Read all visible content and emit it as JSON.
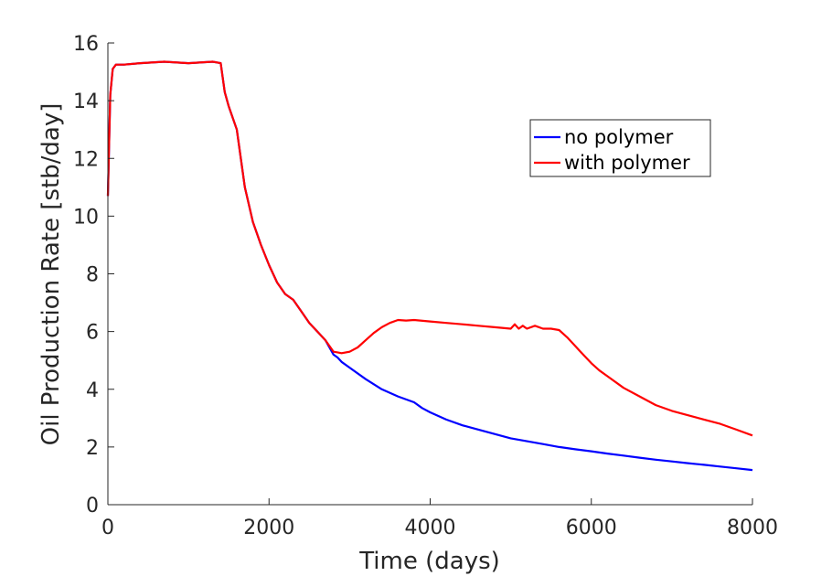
{
  "chart_data": {
    "type": "line",
    "title": "",
    "xlabel": "Time (days)",
    "ylabel": "Oil Production Rate [stb/day]",
    "xlim": [
      0,
      8000
    ],
    "ylim": [
      0,
      16
    ],
    "x_ticks": [
      0,
      2000,
      4000,
      6000,
      8000
    ],
    "y_ticks": [
      0,
      2,
      4,
      6,
      8,
      10,
      12,
      14,
      16
    ],
    "grid": false,
    "legend_position": "top-right",
    "series": [
      {
        "name": "no polymer",
        "color": "#0000ff",
        "x": [
          0,
          30,
          60,
          100,
          200,
          400,
          700,
          1000,
          1300,
          1400,
          1450,
          1500,
          1600,
          1700,
          1800,
          1900,
          2000,
          2100,
          2200,
          2300,
          2400,
          2500,
          2600,
          2700,
          2800,
          2850,
          2900,
          3000,
          3200,
          3400,
          3600,
          3800,
          3900,
          4000,
          4200,
          4400,
          4600,
          4800,
          5000,
          5200,
          5400,
          5600,
          5800,
          6000,
          6200,
          6400,
          6600,
          6800,
          7000,
          7200,
          7400,
          7600,
          7800,
          8000
        ],
        "y": [
          10.7,
          14.2,
          15.1,
          15.25,
          15.25,
          15.3,
          15.35,
          15.3,
          15.35,
          15.3,
          14.3,
          13.8,
          13.0,
          11.0,
          9.8,
          9.0,
          8.3,
          7.7,
          7.3,
          7.1,
          6.7,
          6.3,
          6.0,
          5.7,
          5.2,
          5.1,
          4.95,
          4.75,
          4.35,
          4.0,
          3.75,
          3.55,
          3.35,
          3.2,
          2.95,
          2.75,
          2.6,
          2.45,
          2.3,
          2.2,
          2.1,
          2.0,
          1.92,
          1.85,
          1.77,
          1.7,
          1.63,
          1.56,
          1.5,
          1.44,
          1.38,
          1.32,
          1.26,
          1.2
        ]
      },
      {
        "name": "with polymer",
        "color": "#ff0000",
        "x": [
          0,
          30,
          60,
          100,
          200,
          400,
          700,
          1000,
          1300,
          1400,
          1450,
          1500,
          1600,
          1700,
          1800,
          1900,
          2000,
          2100,
          2200,
          2300,
          2400,
          2500,
          2600,
          2700,
          2800,
          2850,
          2900,
          3000,
          3100,
          3200,
          3300,
          3400,
          3500,
          3600,
          3700,
          3800,
          4000,
          4200,
          4400,
          4600,
          4800,
          5000,
          5050,
          5100,
          5150,
          5200,
          5300,
          5400,
          5500,
          5600,
          5700,
          5800,
          5900,
          6000,
          6100,
          6200,
          6400,
          6600,
          6800,
          7000,
          7200,
          7400,
          7600,
          7800,
          8000
        ],
        "y": [
          10.7,
          14.2,
          15.1,
          15.25,
          15.25,
          15.3,
          15.35,
          15.3,
          15.35,
          15.3,
          14.3,
          13.8,
          13.0,
          11.0,
          9.8,
          9.0,
          8.3,
          7.7,
          7.3,
          7.1,
          6.7,
          6.3,
          6.0,
          5.7,
          5.3,
          5.28,
          5.25,
          5.3,
          5.45,
          5.7,
          5.95,
          6.15,
          6.3,
          6.4,
          6.38,
          6.4,
          6.35,
          6.3,
          6.25,
          6.2,
          6.15,
          6.1,
          6.25,
          6.1,
          6.2,
          6.1,
          6.2,
          6.1,
          6.1,
          6.05,
          5.8,
          5.5,
          5.2,
          4.9,
          4.65,
          4.45,
          4.05,
          3.75,
          3.45,
          3.25,
          3.1,
          2.95,
          2.8,
          2.6,
          2.4
        ]
      }
    ]
  }
}
